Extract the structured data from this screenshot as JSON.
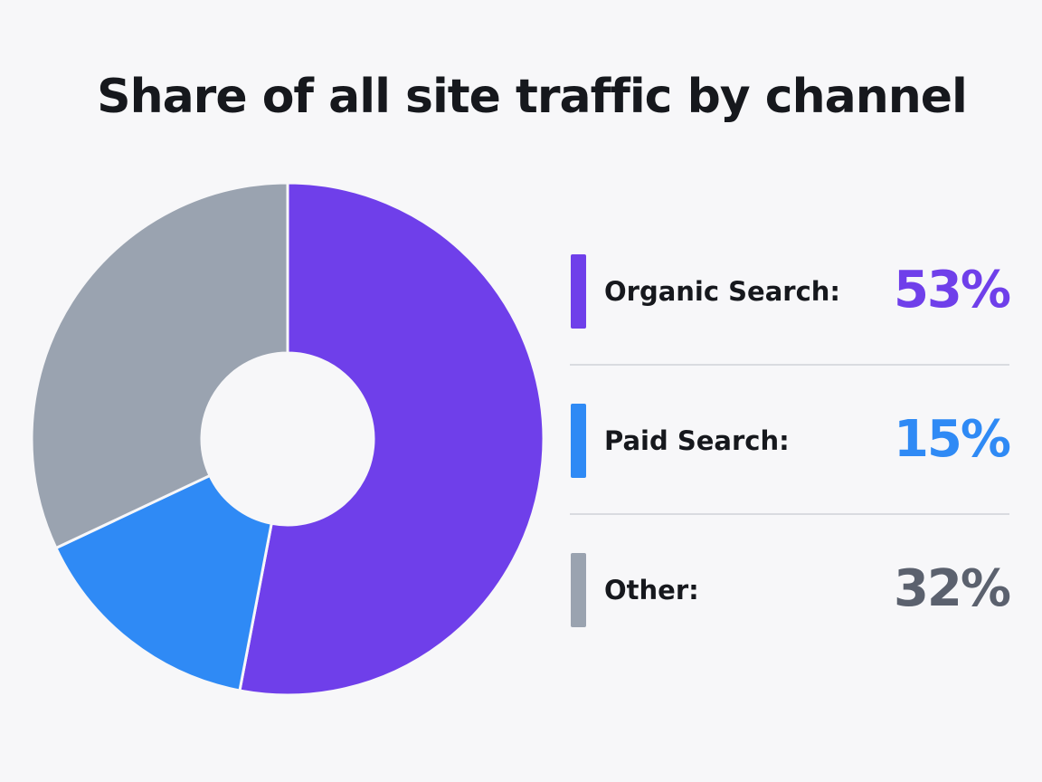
{
  "chart_data": {
    "type": "pie",
    "title": "Share of all site traffic by channel",
    "categories": [
      "Organic Search:",
      "Paid Search:",
      "Other:"
    ],
    "values": [
      53,
      15,
      32
    ],
    "value_labels": [
      "53%",
      "15%",
      "32%"
    ],
    "colors": [
      "#6f3fea",
      "#2f8af5",
      "#9aa3b0"
    ],
    "donut": true
  }
}
